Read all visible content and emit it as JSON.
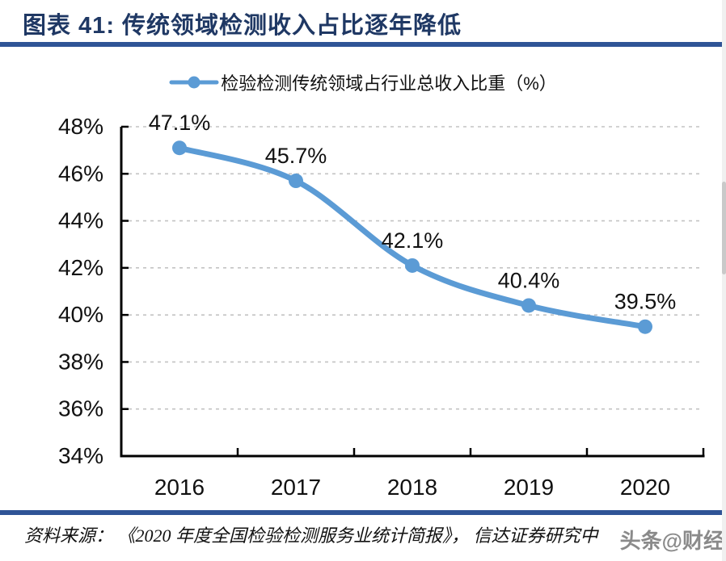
{
  "header": {
    "title": "图表 41:  传统领域检测收入占比逐年降低"
  },
  "legend": {
    "label": "检验检测传统领域占行业总收入比重（%）"
  },
  "chart_data": {
    "type": "line",
    "title": "检验检测传统领域占行业总收入比重（%）",
    "categories": [
      "2016",
      "2017",
      "2018",
      "2019",
      "2020"
    ],
    "series": [
      {
        "name": "检验检测传统领域占行业总收入比重（%）",
        "values": [
          47.1,
          45.7,
          42.1,
          40.4,
          39.5
        ]
      }
    ],
    "data_labels": [
      "47.1%",
      "45.7%",
      "42.1%",
      "40.4%",
      "39.5%"
    ],
    "xlabel": "",
    "ylabel": "",
    "ylim": [
      34,
      48
    ],
    "ytick_step": 2,
    "ytick_labels": [
      "34%",
      "36%",
      "38%",
      "40%",
      "42%",
      "44%",
      "46%",
      "48%"
    ],
    "grid": "horizontal-dashed",
    "legend_position": "top"
  },
  "footer": {
    "source": "资料来源：  《2020 年度全国检验检测服务业统计简报》，  信达证券研究中",
    "watermark": "头条@财经"
  },
  "colors": {
    "accent_navy": "#1F3864",
    "rule_blue": "#2F5496",
    "line_blue": "#5B9BD5",
    "grid_gray": "#c3c3c3",
    "axis_black": "#000000",
    "text_black": "#111111",
    "watermark_gray": "#8a8a8a"
  }
}
